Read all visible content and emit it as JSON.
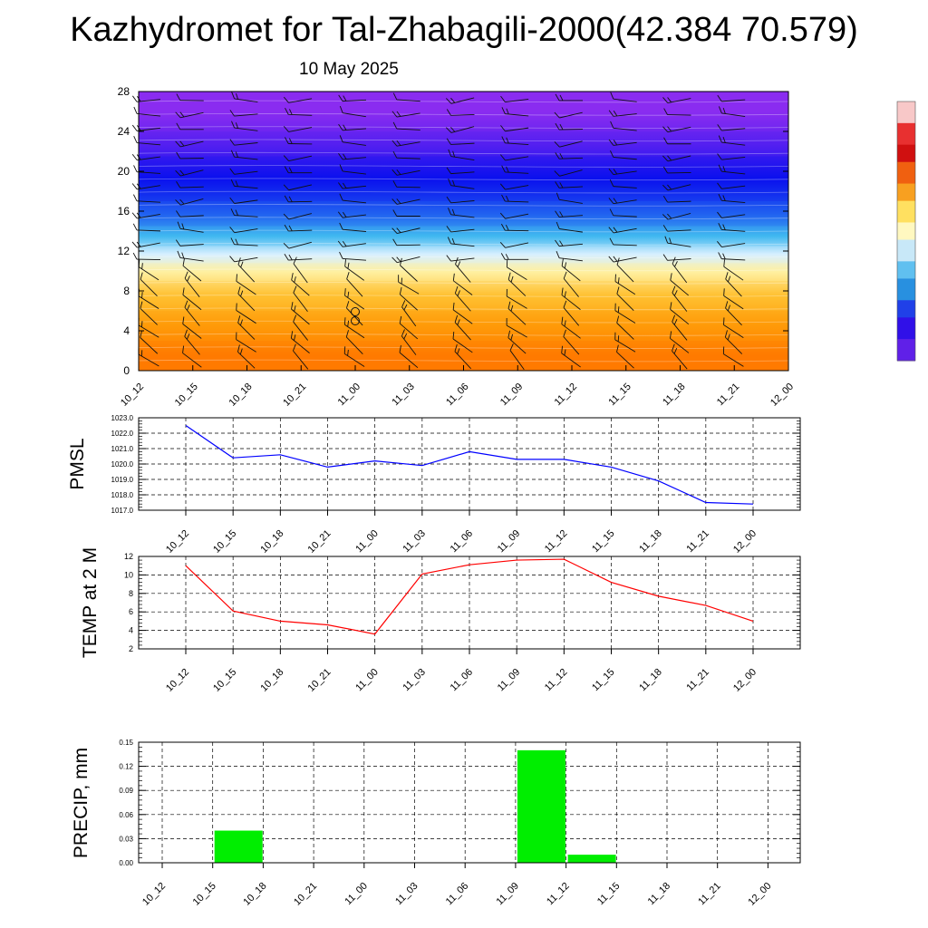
{
  "header": {
    "title": "Kazhydromet for Tal-Zhabagili-2000(42.384 70.579)",
    "date": "10 May 2025"
  },
  "colors": {
    "pmsl_line": "#0000ff",
    "temp_line": "#ff0000",
    "precip_bar": "#00ee00",
    "grid": "#000000"
  },
  "chart_data": [
    {
      "type": "heatmap",
      "name": "cross-section",
      "description_visible": "vertical profile with wind barbs",
      "x": [
        "10_12",
        "10_15",
        "10_18",
        "10_21",
        "11_00",
        "11_03",
        "11_06",
        "11_09",
        "11_12",
        "11_15",
        "11_18",
        "11_21",
        "12_00"
      ],
      "yticks": [
        0,
        4,
        8,
        12,
        16,
        20,
        24,
        28
      ],
      "ylim": [
        0,
        28
      ],
      "color_bands": [
        {
          "y_from": 0,
          "y_to": 3,
          "color": "#ff7a00"
        },
        {
          "y_from": 3,
          "y_to": 6,
          "color": "#ff9a08"
        },
        {
          "y_from": 6,
          "y_to": 9,
          "color": "#ffc030"
        },
        {
          "y_from": 9,
          "y_to": 10.8,
          "color": "#fff0a0"
        },
        {
          "y_from": 10.8,
          "y_to": 12.5,
          "color": "#d8f0ff"
        },
        {
          "y_from": 12.5,
          "y_to": 14.5,
          "color": "#40b8f0"
        },
        {
          "y_from": 14.5,
          "y_to": 17,
          "color": "#2060f0"
        },
        {
          "y_from": 17,
          "y_to": 21.5,
          "color": "#0a10ee"
        },
        {
          "y_from": 21.5,
          "y_to": 24,
          "color": "#5520f0"
        },
        {
          "y_from": 24,
          "y_to": 28,
          "color": "#8a2cf0"
        }
      ]
    },
    {
      "type": "line",
      "name": "pmsl",
      "ylabel": "PMSL",
      "x": [
        "10_12",
        "10_15",
        "10_18",
        "10_21",
        "11_00",
        "11_03",
        "11_06",
        "11_09",
        "11_12",
        "11_15",
        "11_18",
        "11_21",
        "12_00"
      ],
      "series": [
        {
          "values": [
            1022.5,
            1020.4,
            1020.6,
            1019.8,
            1020.2,
            1019.9,
            1020.8,
            1020.3,
            1020.3,
            1019.8,
            1018.9,
            1017.5,
            1017.4
          ]
        }
      ],
      "yticks": [
        "1017.0",
        "1018.0",
        "1019.0",
        "1020.0",
        "1021.0",
        "1022.0",
        "1023.0"
      ],
      "ylim": [
        1017,
        1023
      ]
    },
    {
      "type": "line",
      "name": "temp",
      "ylabel": "TEMP at 2 M",
      "x": [
        "10_12",
        "10_15",
        "10_18",
        "10_21",
        "11_00",
        "11_03",
        "11_06",
        "11_09",
        "11_12",
        "11_15",
        "11_18",
        "11_21",
        "12_00"
      ],
      "series": [
        {
          "values": [
            11.0,
            6.1,
            5.0,
            4.6,
            3.6,
            10.1,
            11.1,
            11.6,
            11.7,
            9.2,
            7.7,
            6.7,
            5.0
          ]
        }
      ],
      "yticks": [
        "2",
        "4",
        "6",
        "8",
        "10",
        "12"
      ],
      "ylim": [
        2,
        12
      ]
    },
    {
      "type": "bar",
      "name": "precip",
      "ylabel": "PRECIP, mm",
      "categories": [
        "10_12",
        "10_15",
        "10_18",
        "10_21",
        "11_00",
        "11_03",
        "11_06",
        "11_09",
        "11_12",
        "11_15",
        "11_18",
        "11_21",
        "12_00"
      ],
      "values": [
        0,
        0.04,
        0,
        0,
        0,
        0,
        0,
        0.14,
        0.01,
        0,
        0,
        0,
        0
      ],
      "yticks": [
        "0.00",
        "0.03",
        "0.06",
        "0.09",
        "0.12",
        "0.15"
      ],
      "ylim": [
        0,
        0.15
      ]
    }
  ]
}
